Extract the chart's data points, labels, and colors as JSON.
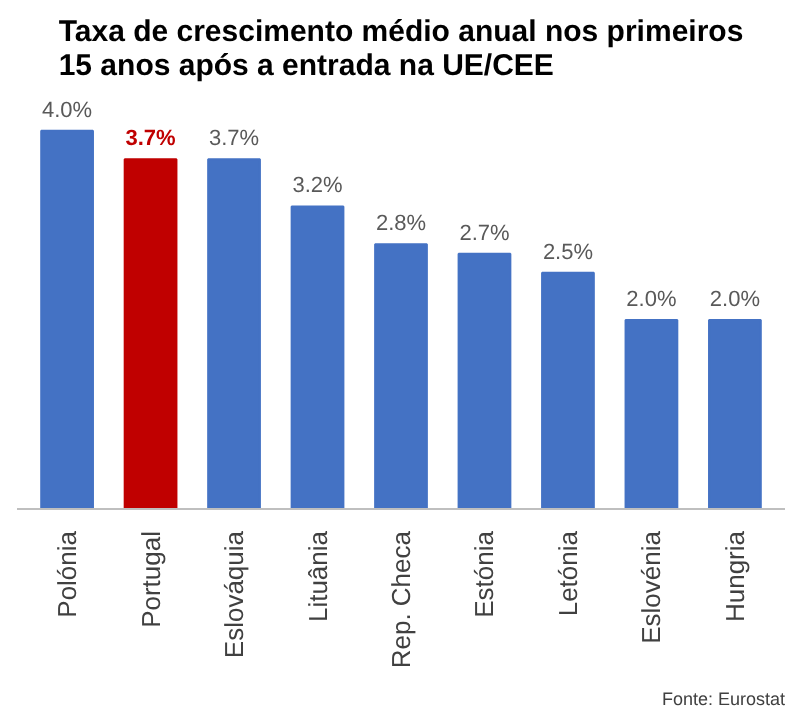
{
  "chart_data": {
    "type": "bar",
    "title": "Taxa de crescimento médio anual nos primeiros\n15 anos após a entrada na UE/CEE",
    "categories": [
      "Polónia",
      "Portugal",
      "Eslováquia",
      "Lituânia",
      "Rep. Checa",
      "Estónia",
      "Letónia",
      "Eslovénia",
      "Hungria"
    ],
    "values": [
      4.0,
      3.7,
      3.7,
      3.2,
      2.8,
      2.7,
      2.5,
      2.0,
      2.0
    ],
    "colors": [
      "#4472c4",
      "#c00000",
      "#4472c4",
      "#4472c4",
      "#4472c4",
      "#4472c4",
      "#4472c4",
      "#4472c4",
      "#4472c4"
    ],
    "value_labels": [
      "4.0%",
      "3.7%",
      "3.7%",
      "3.2%",
      "2.8%",
      "2.7%",
      "2.5%",
      "2.0%",
      "2.0%"
    ],
    "annotations": [
      "Fonte: Eurostat"
    ],
    "grid": false
  }
}
